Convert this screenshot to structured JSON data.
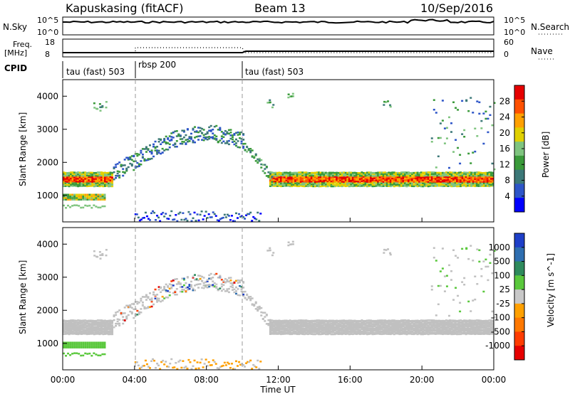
{
  "header": {
    "station": "Kapuskasing (fitACF)",
    "beam": "Beam 13",
    "date": "10/Sep/2016"
  },
  "panel_labels": {
    "nsky": "N.Sky",
    "nsearch": "N.Search",
    "freq": "Freq.",
    "freq_unit": "[MHz]",
    "nave": "Nave",
    "cpid": "CPID",
    "nsky_top": "10^5",
    "nsky_bottom": "10^0",
    "nsearch_top": "10^5",
    "nsearch_bottom": "10^0",
    "freq_top": "18",
    "freq_bottom": "8",
    "nave_top": "60",
    "nave_bottom": "0"
  },
  "modes": [
    {
      "label": "tau (fast) 503",
      "start_hour": 0
    },
    {
      "label": "rbsp 200",
      "start_hour": 3.9
    },
    {
      "label": "tau (fast) 503",
      "start_hour": 9.9
    }
  ],
  "colors": {
    "power_scale": [
      "#0000ff",
      "#2d55c8",
      "#3c7878",
      "#3a9a3a",
      "#7fc47f",
      "#e0d000",
      "#ffa000",
      "#ff5000",
      "#e60000"
    ],
    "velocity_scale": [
      "#1e3fc8",
      "#2e6eb0",
      "#2e8a5c",
      "#5ac83c",
      "#c8c8c8",
      "#ffa000",
      "#ff7800",
      "#ff3c00",
      "#e60000"
    ],
    "ground_scatter": "#c0c0c0"
  },
  "chart_data": [
    {
      "type": "heatmap",
      "title": "Power",
      "xlabel": "Time UT",
      "ylabel": "Slant Range [km]",
      "x_range": [
        0,
        24
      ],
      "y_range": [
        200,
        4500
      ],
      "yticks": [
        "1000",
        "2000",
        "3000",
        "4000"
      ],
      "colorbar": {
        "label": "Power [dB]",
        "ticks": [
          "4",
          "8",
          "12",
          "16",
          "20",
          "24",
          "28"
        ],
        "range": [
          0,
          30
        ]
      },
      "features": [
        {
          "desc": "strong band",
          "x": [
            0,
            2.8
          ],
          "range_km": [
            1350,
            1650
          ],
          "value_db": 24
        },
        {
          "desc": "rising band",
          "x": [
            2.8,
            6
          ],
          "range_km": [
            1600,
            2700
          ],
          "value_db": 10
        },
        {
          "desc": "arc",
          "x": [
            5,
            10
          ],
          "range_km": [
            2500,
            3400
          ],
          "value_db": 8
        },
        {
          "desc": "strong band",
          "x": [
            11.5,
            24
          ],
          "range_km": [
            1300,
            1750
          ],
          "value_db": 22
        }
      ]
    },
    {
      "type": "heatmap",
      "title": "Velocity",
      "xlabel": "Time UT",
      "ylabel": "Slant Range [km]",
      "x_range": [
        0,
        24
      ],
      "y_range": [
        200,
        4500
      ],
      "yticks": [
        "1000",
        "2000",
        "3000",
        "4000"
      ],
      "colorbar": {
        "label": "Velocity [m s^-1]",
        "ticks": [
          "1000",
          "500",
          "100",
          "25",
          "-25",
          "-100",
          "-500",
          "-1000"
        ],
        "range": [
          -1000,
          1000
        ]
      }
    }
  ],
  "time_axis": {
    "ticks": [
      "00:00",
      "04:00",
      "08:00",
      "12:00",
      "16:00",
      "20:00",
      "00:00"
    ],
    "label": "Time UT"
  }
}
